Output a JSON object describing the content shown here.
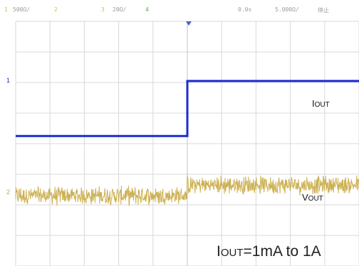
{
  "header": {
    "ch1_label": "1",
    "ch1_scale": "500Ω/",
    "ch2_label": "2",
    "ch3_label": "3",
    "ch3_scale": "20Ω/",
    "ch4_label": "4",
    "time_offset": "0.0s",
    "time_scale": "5.000Ω/",
    "run_state": "停止",
    "ch1_color": "#d4c040",
    "ch3_color": "#d4c040",
    "ch4_color": "#4caf50"
  },
  "markers": {
    "ch_blue_marker": "1",
    "ch_yellow_marker": "2"
  },
  "chart_data": {
    "type": "line",
    "title": "",
    "annotation": "IOUT=1mA to 1A",
    "grid": true,
    "xlim": [
      -5,
      5
    ],
    "ylim": [
      -4,
      4
    ],
    "step_time": 0,
    "series": [
      {
        "name": "IOUT",
        "label_main": "I",
        "label_sub": "OUT",
        "color": "#1c2bd0",
        "x": [
          -5,
          0,
          0,
          5
        ],
        "y": [
          0.25,
          0.25,
          2.05,
          2.05
        ]
      },
      {
        "name": "VOUT",
        "label_main": "V",
        "label_sub": "OUT",
        "color": "#c8a840",
        "x": [
          -5,
          0,
          0,
          5
        ],
        "y": [
          -1.7,
          -1.7,
          -1.35,
          -1.35
        ],
        "noise_amplitude": 0.35
      }
    ],
    "annotation_parts": {
      "main": "I",
      "sub": "OUT",
      "rest": "=1mA to 1A"
    }
  }
}
